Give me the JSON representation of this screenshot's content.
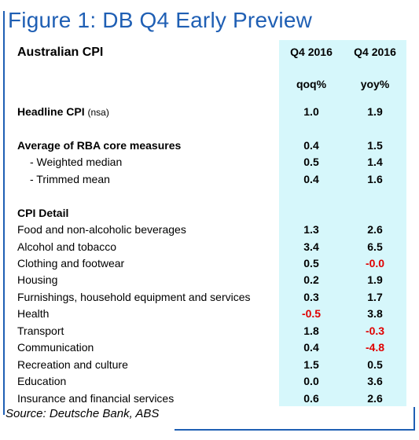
{
  "figure_title": "Figure 1: DB Q4 Early Preview",
  "subtitle": "Australian CPI",
  "columns": [
    {
      "period": "Q4 2016",
      "unit": "qoq%"
    },
    {
      "period": "Q4 2016",
      "unit": "yoy%"
    }
  ],
  "rows": [
    {
      "label": "Headline CPI",
      "note": "(nsa)",
      "qoq": "1.0",
      "yoy": "1.9",
      "bold": true,
      "indent": false
    },
    {
      "label": "Average of RBA core measures",
      "qoq": "0.4",
      "yoy": "1.5",
      "bold": true,
      "indent": false
    },
    {
      "label": "- Weighted median",
      "qoq": "0.5",
      "yoy": "1.4",
      "bold": false,
      "indent": true
    },
    {
      "label": "- Trimmed mean",
      "qoq": "0.4",
      "yoy": "1.6",
      "bold": false,
      "indent": true
    },
    {
      "label": "CPI Detail",
      "qoq": "",
      "yoy": "",
      "bold": true,
      "indent": false
    },
    {
      "label": "Food and non-alcoholic beverages",
      "qoq": "1.3",
      "yoy": "2.6",
      "bold": false,
      "indent": false
    },
    {
      "label": "Alcohol and tobacco",
      "qoq": "3.4",
      "yoy": "6.5",
      "bold": false,
      "indent": false
    },
    {
      "label": "Clothing and footwear",
      "qoq": "0.5",
      "yoy": "-0.0",
      "bold": false,
      "indent": false
    },
    {
      "label": "Housing",
      "qoq": "0.2",
      "yoy": "1.9",
      "bold": false,
      "indent": false
    },
    {
      "label": "Furnishings, household equipment and services",
      "qoq": "0.3",
      "yoy": "1.7",
      "bold": false,
      "indent": false
    },
    {
      "label": "Health",
      "qoq": "-0.5",
      "yoy": "3.8",
      "bold": false,
      "indent": false
    },
    {
      "label": "Transport",
      "qoq": "1.8",
      "yoy": "-0.3",
      "bold": false,
      "indent": false
    },
    {
      "label": "Communication",
      "qoq": "0.4",
      "yoy": "-4.8",
      "bold": false,
      "indent": false
    },
    {
      "label": "Recreation and culture",
      "qoq": "1.5",
      "yoy": "0.5",
      "bold": false,
      "indent": false
    },
    {
      "label": "Education",
      "qoq": "0.0",
      "yoy": "3.6",
      "bold": false,
      "indent": false
    },
    {
      "label": "Insurance and financial services",
      "qoq": "0.6",
      "yoy": "2.6",
      "bold": false,
      "indent": false
    }
  ],
  "source": "Source: Deutsche Bank, ABS",
  "colors": {
    "title_blue": "#1f5fb4",
    "column_shade": "#d6f7fb",
    "negative_red": "#e00000"
  }
}
